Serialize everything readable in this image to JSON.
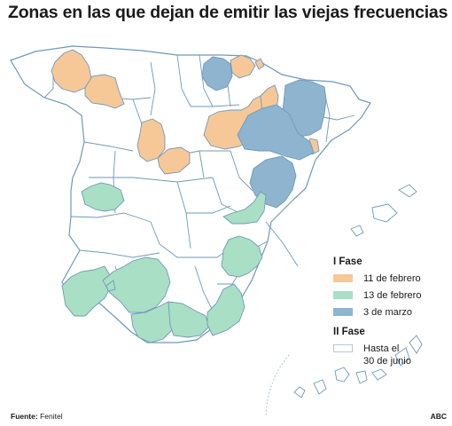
{
  "title": "Zonas en las que dejan de emitir las viejas frecuencias",
  "colors": {
    "background": "#ffffff",
    "border": "#6f99b9",
    "fase1_11_febrero": "#f6c898",
    "fase1_13_febrero": "#a9dfc5",
    "fase1_3_marzo": "#8eb4cf",
    "fase2_hasta_30_junio": "#ffffff"
  },
  "legend": {
    "group1_title": "I Fase",
    "group1_items": [
      {
        "label": "11 de febrero",
        "color_key": "fase1_11_febrero"
      },
      {
        "label": "13 de febrero",
        "color_key": "fase1_13_febrero"
      },
      {
        "label": "3 de marzo",
        "color_key": "fase1_3_marzo"
      }
    ],
    "group2_title": "II Fase",
    "group2_items": [
      {
        "label_line1": "Hasta el",
        "label_line2": "30 de junio",
        "color_key": "fase2_hasta_30_junio"
      }
    ]
  },
  "footer": {
    "source_label": "Fuente:",
    "source_value": "Fenitel",
    "brand": "ABC"
  }
}
